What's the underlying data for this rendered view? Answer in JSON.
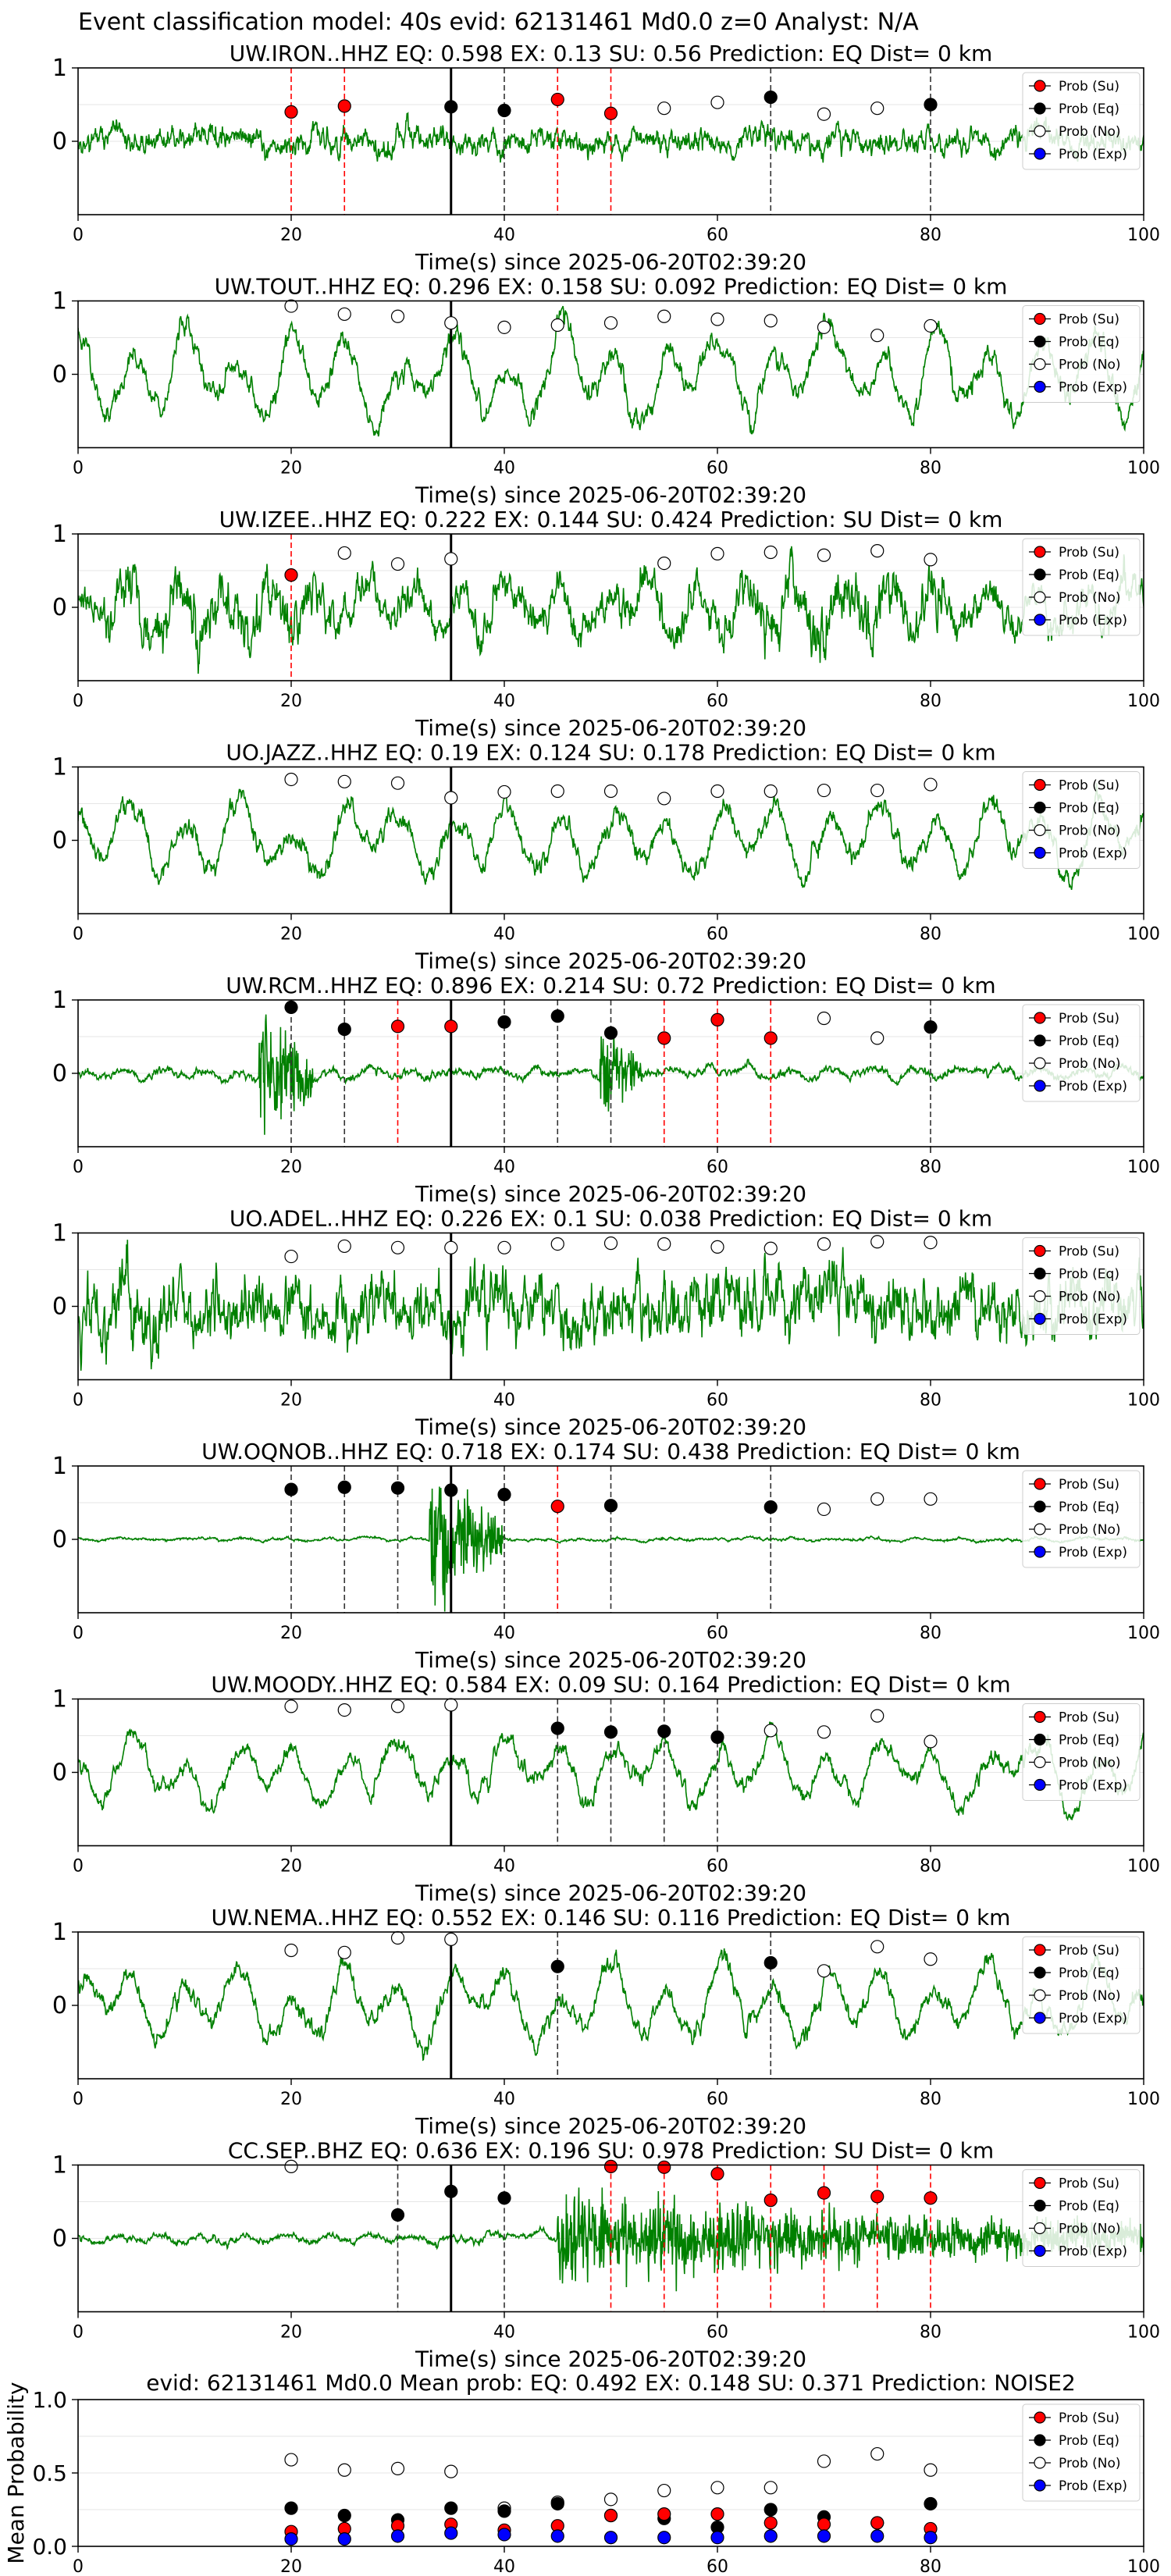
{
  "figure": {
    "suptitle": "Event classification model: 40s evid: 62131461 Md0.0 z=0 Analyst: N/A"
  },
  "legend_labels": [
    "Prob (Su)",
    "Prob (Eq)",
    "Prob (No)",
    "Prob (Exp)"
  ],
  "colors": {
    "waveform": "#008000",
    "su": "#ff0000",
    "eq": "#000000",
    "no": "#ffffff",
    "exp": "#0000ff",
    "su_line": "#ff0000",
    "eq_line": "#333333",
    "pick_line": "#000000"
  },
  "chart_data": [
    {
      "type": "line",
      "title": "UW.IRON..HHZ   EQ: 0.598  EX: 0.13  SU: 0.56   Prediction: EQ    Dist= 0 km",
      "xlabel": "Time(s) since 2025-06-20T02:39:20",
      "xlim": [
        0,
        100
      ],
      "ylim": [
        -1,
        1
      ],
      "xticks": [
        "0",
        "20",
        "40",
        "60",
        "80",
        "100"
      ],
      "yticks": [
        "1",
        "0"
      ],
      "pick_time": 35,
      "waveform": {
        "seed": 11,
        "amp": 0.22,
        "style": "noisy"
      },
      "windows": [
        {
          "t": 20,
          "cls": "su",
          "p": 0.4
        },
        {
          "t": 25,
          "cls": "su",
          "p": 0.48
        },
        {
          "t": 35,
          "cls": "eq",
          "p": 0.47
        },
        {
          "t": 40,
          "cls": "eq",
          "p": 0.42
        },
        {
          "t": 45,
          "cls": "su",
          "p": 0.57
        },
        {
          "t": 50,
          "cls": "su",
          "p": 0.38
        },
        {
          "t": 55,
          "cls": "no",
          "p": 0.45
        },
        {
          "t": 60,
          "cls": "no",
          "p": 0.53
        },
        {
          "t": 65,
          "cls": "eq",
          "p": 0.6
        },
        {
          "t": 70,
          "cls": "no",
          "p": 0.37
        },
        {
          "t": 75,
          "cls": "no",
          "p": 0.45
        },
        {
          "t": 80,
          "cls": "eq",
          "p": 0.5
        }
      ]
    },
    {
      "type": "line",
      "title": "UW.TOUT..HHZ   EQ: 0.296  EX: 0.158  SU: 0.092   Prediction: EQ    Dist= 0 km",
      "xlabel": "Time(s) since 2025-06-20T02:39:20",
      "xlim": [
        0,
        100
      ],
      "ylim": [
        -1,
        1
      ],
      "xticks": [
        "0",
        "20",
        "40",
        "60",
        "80",
        "100"
      ],
      "yticks": [
        "1",
        "0"
      ],
      "pick_time": 35,
      "waveform": {
        "seed": 23,
        "amp": 0.55,
        "style": "wavy"
      },
      "windows": [
        {
          "t": 20,
          "cls": "no",
          "p": 0.93
        },
        {
          "t": 25,
          "cls": "no",
          "p": 0.82
        },
        {
          "t": 30,
          "cls": "no",
          "p": 0.79
        },
        {
          "t": 35,
          "cls": "no",
          "p": 0.7
        },
        {
          "t": 40,
          "cls": "no",
          "p": 0.64
        },
        {
          "t": 45,
          "cls": "no",
          "p": 0.67
        },
        {
          "t": 50,
          "cls": "no",
          "p": 0.7
        },
        {
          "t": 55,
          "cls": "no",
          "p": 0.79
        },
        {
          "t": 60,
          "cls": "no",
          "p": 0.75
        },
        {
          "t": 65,
          "cls": "no",
          "p": 0.73
        },
        {
          "t": 70,
          "cls": "no",
          "p": 0.64
        },
        {
          "t": 75,
          "cls": "no",
          "p": 0.53
        },
        {
          "t": 80,
          "cls": "no",
          "p": 0.66
        }
      ]
    },
    {
      "type": "line",
      "title": "UW.IZEE..HHZ   EQ: 0.222  EX: 0.144  SU: 0.424   Prediction: SU    Dist= 0 km",
      "xlabel": "Time(s) since 2025-06-20T02:39:20",
      "xlim": [
        0,
        100
      ],
      "ylim": [
        -1,
        1
      ],
      "xticks": [
        "0",
        "20",
        "40",
        "60",
        "80",
        "100"
      ],
      "yticks": [
        "1",
        "0"
      ],
      "pick_time": 35,
      "waveform": {
        "seed": 37,
        "amp": 0.45,
        "style": "dense"
      },
      "windows": [
        {
          "t": 20,
          "cls": "su",
          "p": 0.44
        },
        {
          "t": 25,
          "cls": "no",
          "p": 0.74
        },
        {
          "t": 30,
          "cls": "no",
          "p": 0.59
        },
        {
          "t": 35,
          "cls": "no",
          "p": 0.66
        },
        {
          "t": 55,
          "cls": "no",
          "p": 0.6
        },
        {
          "t": 60,
          "cls": "no",
          "p": 0.73
        },
        {
          "t": 65,
          "cls": "no",
          "p": 0.75
        },
        {
          "t": 70,
          "cls": "no",
          "p": 0.71
        },
        {
          "t": 75,
          "cls": "no",
          "p": 0.77
        },
        {
          "t": 80,
          "cls": "no",
          "p": 0.65
        }
      ]
    },
    {
      "type": "line",
      "title": "UO.JAZZ..HHZ   EQ: 0.19  EX: 0.124  SU: 0.178   Prediction: EQ    Dist= 0 km",
      "xlabel": "Time(s) since 2025-06-20T02:39:20",
      "xlim": [
        0,
        100
      ],
      "ylim": [
        -1,
        1
      ],
      "xticks": [
        "0",
        "20",
        "40",
        "60",
        "80",
        "100"
      ],
      "yticks": [
        "1",
        "0"
      ],
      "pick_time": 35,
      "waveform": {
        "seed": 41,
        "amp": 0.5,
        "style": "wavy"
      },
      "windows": [
        {
          "t": 20,
          "cls": "no",
          "p": 0.83
        },
        {
          "t": 25,
          "cls": "no",
          "p": 0.8
        },
        {
          "t": 30,
          "cls": "no",
          "p": 0.78
        },
        {
          "t": 35,
          "cls": "no",
          "p": 0.58
        },
        {
          "t": 40,
          "cls": "no",
          "p": 0.66
        },
        {
          "t": 45,
          "cls": "no",
          "p": 0.67
        },
        {
          "t": 50,
          "cls": "no",
          "p": 0.67
        },
        {
          "t": 55,
          "cls": "no",
          "p": 0.57
        },
        {
          "t": 60,
          "cls": "no",
          "p": 0.67
        },
        {
          "t": 65,
          "cls": "no",
          "p": 0.67
        },
        {
          "t": 70,
          "cls": "no",
          "p": 0.68
        },
        {
          "t": 75,
          "cls": "no",
          "p": 0.68
        },
        {
          "t": 80,
          "cls": "no",
          "p": 0.76
        }
      ]
    },
    {
      "type": "line",
      "title": "UW.RCM..HHZ   EQ: 0.896  EX: 0.214  SU: 0.72   Prediction: EQ    Dist= 0 km",
      "xlabel": "Time(s) since 2025-06-20T02:39:20",
      "xlim": [
        0,
        100
      ],
      "ylim": [
        -1,
        1
      ],
      "xticks": [
        "0",
        "20",
        "40",
        "60",
        "80",
        "100"
      ],
      "yticks": [
        "1",
        "0"
      ],
      "pick_time": 35,
      "waveform": {
        "seed": 53,
        "amp": 0.12,
        "style": "burst",
        "bursts": [
          [
            17,
            22,
            0.9
          ],
          [
            49,
            53,
            0.6
          ]
        ]
      },
      "windows": [
        {
          "t": 20,
          "cls": "eq",
          "p": 0.9
        },
        {
          "t": 25,
          "cls": "eq",
          "p": 0.6
        },
        {
          "t": 30,
          "cls": "su",
          "p": 0.64
        },
        {
          "t": 35,
          "cls": "su",
          "p": 0.64
        },
        {
          "t": 40,
          "cls": "eq",
          "p": 0.7
        },
        {
          "t": 45,
          "cls": "eq",
          "p": 0.78
        },
        {
          "t": 50,
          "cls": "eq",
          "p": 0.55
        },
        {
          "t": 55,
          "cls": "su",
          "p": 0.48
        },
        {
          "t": 60,
          "cls": "su",
          "p": 0.73
        },
        {
          "t": 65,
          "cls": "su",
          "p": 0.48
        },
        {
          "t": 70,
          "cls": "no",
          "p": 0.75
        },
        {
          "t": 75,
          "cls": "no",
          "p": 0.48
        },
        {
          "t": 80,
          "cls": "eq",
          "p": 0.63
        }
      ]
    },
    {
      "type": "line",
      "title": "UO.ADEL..HHZ   EQ: 0.226  EX: 0.1  SU: 0.038   Prediction: EQ    Dist= 0 km",
      "xlabel": "Time(s) since 2025-06-20T02:39:20",
      "xlim": [
        0,
        100
      ],
      "ylim": [
        -1,
        1
      ],
      "xticks": [
        "0",
        "20",
        "40",
        "60",
        "80",
        "100"
      ],
      "yticks": [
        "1",
        "0"
      ],
      "pick_time": 35,
      "waveform": {
        "seed": 67,
        "amp": 0.6,
        "style": "noisy"
      },
      "windows": [
        {
          "t": 20,
          "cls": "no",
          "p": 0.68
        },
        {
          "t": 25,
          "cls": "no",
          "p": 0.82
        },
        {
          "t": 30,
          "cls": "no",
          "p": 0.8
        },
        {
          "t": 35,
          "cls": "no",
          "p": 0.8
        },
        {
          "t": 40,
          "cls": "no",
          "p": 0.8
        },
        {
          "t": 45,
          "cls": "no",
          "p": 0.85
        },
        {
          "t": 50,
          "cls": "no",
          "p": 0.86
        },
        {
          "t": 55,
          "cls": "no",
          "p": 0.85
        },
        {
          "t": 60,
          "cls": "no",
          "p": 0.81
        },
        {
          "t": 65,
          "cls": "no",
          "p": 0.79
        },
        {
          "t": 70,
          "cls": "no",
          "p": 0.85
        },
        {
          "t": 75,
          "cls": "no",
          "p": 0.88
        },
        {
          "t": 80,
          "cls": "no",
          "p": 0.87
        }
      ]
    },
    {
      "type": "line",
      "title": "UW.OQNOB..HHZ   EQ: 0.718  EX: 0.174  SU: 0.438   Prediction: EQ    Dist= 0 km",
      "xlabel": "Time(s) since 2025-06-20T02:39:20",
      "xlim": [
        0,
        100
      ],
      "ylim": [
        -1,
        1
      ],
      "xticks": [
        "0",
        "20",
        "40",
        "60",
        "80",
        "100"
      ],
      "yticks": [
        "1",
        "0"
      ],
      "pick_time": 35,
      "waveform": {
        "seed": 71,
        "amp": 0.04,
        "style": "burst",
        "bursts": [
          [
            33,
            40,
            0.85
          ]
        ]
      },
      "windows": [
        {
          "t": 20,
          "cls": "eq",
          "p": 0.68
        },
        {
          "t": 25,
          "cls": "eq",
          "p": 0.71
        },
        {
          "t": 30,
          "cls": "eq",
          "p": 0.7
        },
        {
          "t": 35,
          "cls": "eq",
          "p": 0.67
        },
        {
          "t": 40,
          "cls": "eq",
          "p": 0.61
        },
        {
          "t": 45,
          "cls": "su",
          "p": 0.45
        },
        {
          "t": 50,
          "cls": "eq",
          "p": 0.46
        },
        {
          "t": 65,
          "cls": "eq",
          "p": 0.44
        },
        {
          "t": 70,
          "cls": "no",
          "p": 0.41
        },
        {
          "t": 75,
          "cls": "no",
          "p": 0.55
        },
        {
          "t": 80,
          "cls": "no",
          "p": 0.55
        }
      ]
    },
    {
      "type": "line",
      "title": "UW.MOODY..HHZ   EQ: 0.584  EX: 0.09  SU: 0.164   Prediction: EQ    Dist= 0 km",
      "xlabel": "Time(s) since 2025-06-20T02:39:20",
      "xlim": [
        0,
        100
      ],
      "ylim": [
        -1,
        1
      ],
      "xticks": [
        "0",
        "20",
        "40",
        "60",
        "80",
        "100"
      ],
      "yticks": [
        "1",
        "0"
      ],
      "pick_time": 35,
      "waveform": {
        "seed": 83,
        "amp": 0.42,
        "style": "wavy"
      },
      "windows": [
        {
          "t": 20,
          "cls": "no",
          "p": 0.9
        },
        {
          "t": 25,
          "cls": "no",
          "p": 0.85
        },
        {
          "t": 30,
          "cls": "no",
          "p": 0.9
        },
        {
          "t": 35,
          "cls": "no",
          "p": 0.92
        },
        {
          "t": 45,
          "cls": "eq",
          "p": 0.6
        },
        {
          "t": 50,
          "cls": "eq",
          "p": 0.55
        },
        {
          "t": 55,
          "cls": "eq",
          "p": 0.56
        },
        {
          "t": 60,
          "cls": "eq",
          "p": 0.48
        },
        {
          "t": 65,
          "cls": "no",
          "p": 0.57
        },
        {
          "t": 70,
          "cls": "no",
          "p": 0.55
        },
        {
          "t": 75,
          "cls": "no",
          "p": 0.77
        },
        {
          "t": 80,
          "cls": "no",
          "p": 0.42
        }
      ]
    },
    {
      "type": "line",
      "title": "UW.NEMA..HHZ   EQ: 0.552  EX: 0.146  SU: 0.116   Prediction: EQ    Dist= 0 km",
      "xlabel": "Time(s) since 2025-06-20T02:39:20",
      "xlim": [
        0,
        100
      ],
      "ylim": [
        -1,
        1
      ],
      "xticks": [
        "0",
        "20",
        "40",
        "60",
        "80",
        "100"
      ],
      "yticks": [
        "1",
        "0"
      ],
      "pick_time": 35,
      "waveform": {
        "seed": 97,
        "amp": 0.48,
        "style": "wavy"
      },
      "windows": [
        {
          "t": 20,
          "cls": "no",
          "p": 0.75
        },
        {
          "t": 25,
          "cls": "no",
          "p": 0.72
        },
        {
          "t": 30,
          "cls": "no",
          "p": 0.92
        },
        {
          "t": 35,
          "cls": "no",
          "p": 0.9
        },
        {
          "t": 45,
          "cls": "eq",
          "p": 0.53
        },
        {
          "t": 65,
          "cls": "eq",
          "p": 0.58
        },
        {
          "t": 70,
          "cls": "no",
          "p": 0.47
        },
        {
          "t": 75,
          "cls": "no",
          "p": 0.8
        },
        {
          "t": 80,
          "cls": "no",
          "p": 0.63
        }
      ]
    },
    {
      "type": "line",
      "title": "CC.SEP..BHZ   EQ: 0.636  EX: 0.196  SU: 0.978   Prediction: SU    Dist= 0 km",
      "xlabel": "Time(s) since 2025-06-20T02:39:20",
      "xlim": [
        0,
        100
      ],
      "ylim": [
        -1,
        1
      ],
      "xticks": [
        "0",
        "20",
        "40",
        "60",
        "80",
        "100"
      ],
      "yticks": [
        "1",
        "0"
      ],
      "pick_time": 35,
      "waveform": {
        "seed": 101,
        "amp": 0.1,
        "style": "burst",
        "bursts": [
          [
            45,
            100,
            0.55
          ]
        ]
      },
      "windows": [
        {
          "t": 20,
          "cls": "no",
          "p": 0.98
        },
        {
          "t": 30,
          "cls": "eq",
          "p": 0.32
        },
        {
          "t": 35,
          "cls": "eq",
          "p": 0.64
        },
        {
          "t": 40,
          "cls": "eq",
          "p": 0.55
        },
        {
          "t": 50,
          "cls": "su",
          "p": 0.98
        },
        {
          "t": 55,
          "cls": "su",
          "p": 0.97
        },
        {
          "t": 60,
          "cls": "su",
          "p": 0.88
        },
        {
          "t": 65,
          "cls": "su",
          "p": 0.52
        },
        {
          "t": 70,
          "cls": "su",
          "p": 0.62
        },
        {
          "t": 75,
          "cls": "su",
          "p": 0.57
        },
        {
          "t": 80,
          "cls": "su",
          "p": 0.55
        }
      ]
    },
    {
      "type": "scatter",
      "title": "evid: 62131461  Md0.0   Mean prob:   EQ: 0.492  EX: 0.148  SU: 0.371   Prediction: NOISE2",
      "ylabel": "Mean Probability",
      "xlim": [
        0,
        100
      ],
      "ylim": [
        0,
        1
      ],
      "xticks": [
        "0",
        "20",
        "40",
        "60",
        "80",
        "100"
      ],
      "yticks": [
        "0.0",
        "0.5",
        "1.0"
      ],
      "x": [
        20,
        25,
        30,
        35,
        40,
        45,
        50,
        55,
        60,
        65,
        70,
        75,
        80
      ],
      "series": [
        {
          "name": "Prob (No)",
          "cls": "no",
          "values": [
            0.59,
            0.52,
            0.53,
            0.51,
            0.26,
            0.3,
            0.32,
            0.38,
            0.4,
            0.4,
            0.58,
            0.63,
            0.52
          ]
        },
        {
          "name": "Prob (Eq)",
          "cls": "eq",
          "values": [
            0.26,
            0.21,
            0.18,
            0.26,
            0.24,
            0.29,
            0.21,
            0.19,
            0.13,
            0.25,
            0.2,
            0.16,
            0.29
          ]
        },
        {
          "name": "Prob (Su)",
          "cls": "su",
          "values": [
            0.1,
            0.12,
            0.14,
            0.15,
            0.11,
            0.14,
            0.21,
            0.22,
            0.22,
            0.16,
            0.15,
            0.16,
            0.12
          ]
        },
        {
          "name": "Prob (Exp)",
          "cls": "exp",
          "values": [
            0.05,
            0.05,
            0.07,
            0.09,
            0.08,
            0.07,
            0.06,
            0.06,
            0.06,
            0.07,
            0.07,
            0.07,
            0.06
          ]
        }
      ]
    }
  ]
}
